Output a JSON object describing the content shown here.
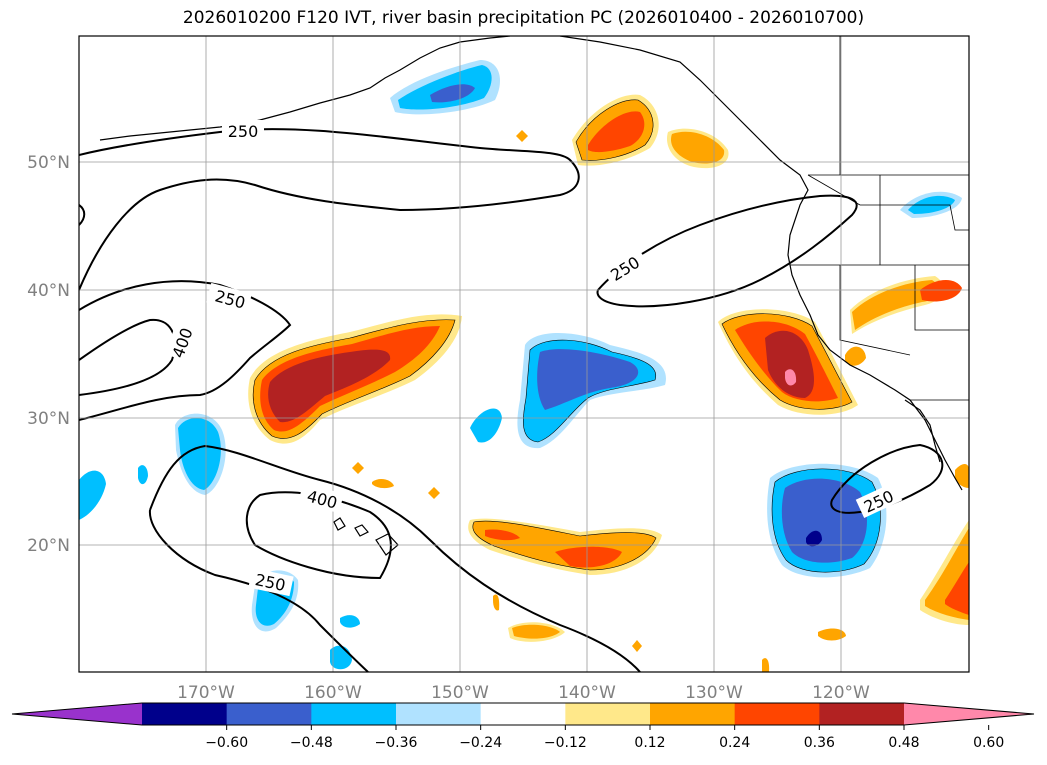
{
  "title": "2026010200 F120 IVT, river basin precipitation PC (2026010400 - 2026010700)",
  "lat_labels": [
    "50°N",
    "40°N",
    "30°N",
    "20°N"
  ],
  "lon_labels": [
    "170°W",
    "160°W",
    "150°W",
    "140°W",
    "130°W",
    "120°W"
  ],
  "contour_labels": [
    "250",
    "250",
    "250",
    "250",
    "250",
    "400",
    "400"
  ],
  "colorbar": {
    "ticks": [
      "−0.60",
      "−0.48",
      "−0.36",
      "−0.24",
      "−0.12",
      "0.12",
      "0.24",
      "0.36",
      "0.48",
      "0.60"
    ],
    "colors": [
      "#9932cc",
      "#00008b",
      "#3a5fcd",
      "#00bfff",
      "#b0e2ff",
      "#ffffff",
      "#ffe88a",
      "#ffa500",
      "#ff4500",
      "#b22222",
      "#ff88aa"
    ]
  },
  "colors": {
    "neg_strong": "#3a5fcd",
    "neg_mid": "#00bfff",
    "neg_light": "#b0e2ff",
    "pos_light": "#ffe88a",
    "pos_mid": "#ffa500",
    "pos_strong": "#ff4500",
    "pos_darker": "#b22222",
    "pos_max": "#ff88aa",
    "neg_max": "#00008b"
  }
}
